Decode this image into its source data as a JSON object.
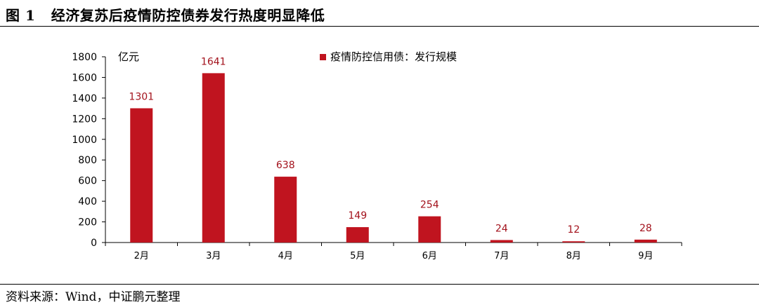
{
  "header": {
    "figure_label": "图 1",
    "figure_title": "经济复苏后疫情防控债券发行热度明显降低"
  },
  "footer": {
    "source": "资料来源：Wind，中证鹏元整理"
  },
  "colors": {
    "bar": "#c0141f",
    "label": "#a3121c",
    "axis": "#000000"
  },
  "chart_data": {
    "type": "bar",
    "title": "",
    "xlabel": "",
    "ylabel": "亿元",
    "categories": [
      "2月",
      "3月",
      "4月",
      "5月",
      "6月",
      "7月",
      "8月",
      "9月"
    ],
    "series": [
      {
        "name": "疫情防控信用债：发行规模",
        "values": [
          1301,
          1641,
          638,
          149,
          254,
          24,
          12,
          28
        ]
      }
    ],
    "ylim": [
      0,
      1800
    ],
    "yticks": [
      0,
      200,
      400,
      600,
      800,
      1000,
      1200,
      1400,
      1600,
      1800
    ],
    "data_labels": true,
    "grid": false,
    "legend_position": "top-center"
  }
}
